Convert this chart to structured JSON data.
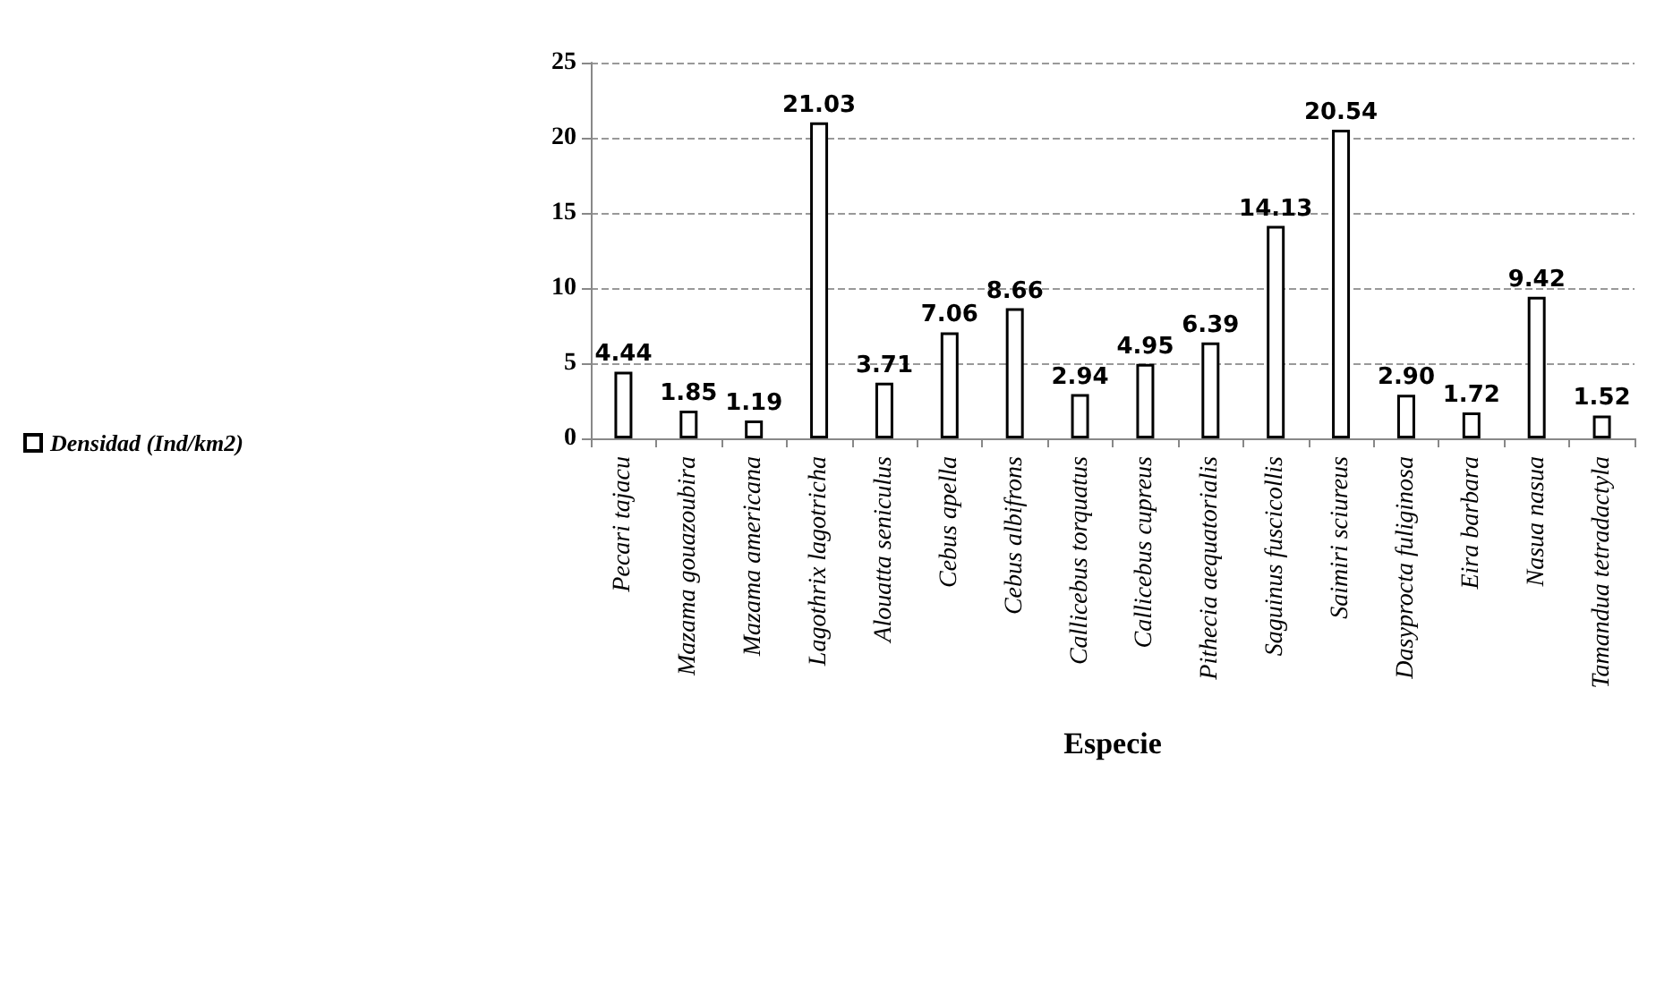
{
  "chart_data": {
    "type": "bar",
    "xlabel": "Especie",
    "categories": [
      "Pecari tajacu",
      "Mazama gouazoubira",
      "Mazama americana",
      "Lagothrix lagotricha",
      "Alouatta seniculus",
      "Cebus apella",
      "Cebus albifrons",
      "Callicebus torquatus",
      "Callicebus cupreus",
      "Pithecia aequatorialis",
      "Saguinus fuscicollis",
      "Saimiri sciureus",
      "Dasyprocta fuliginosa",
      "Eira barbara",
      "Nasua nasua",
      "Tamandua tetradactyla"
    ],
    "series": [
      {
        "name": "Densidad (Ind/km2)",
        "color": "#ffffff",
        "values": [
          4.44,
          1.85,
          1.19,
          21.03,
          3.71,
          7.06,
          8.66,
          2.94,
          4.95,
          6.39,
          14.13,
          20.54,
          2.9,
          1.72,
          9.42,
          1.52
        ],
        "value_labels": [
          "4.44",
          "1.85",
          "1.19",
          "21.03",
          "3.71",
          "7.06",
          "8.66",
          "2.94",
          "4.95",
          "6.39",
          "14.13",
          "20.54",
          "2.90",
          "1.72",
          "9.42",
          "1.52"
        ]
      }
    ],
    "ylim": [
      0,
      25
    ],
    "yticks": [
      0,
      5,
      10,
      15,
      20,
      25
    ],
    "grid": "y",
    "legend": "left"
  }
}
